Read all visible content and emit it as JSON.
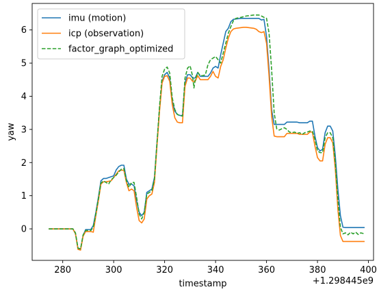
{
  "chart_data": {
    "type": "line",
    "xlabel": "timestamp",
    "ylabel": "yaw",
    "x_offset_label": "+1.298445e9",
    "xlim": [
      268,
      402
    ],
    "ylim": [
      -0.95,
      6.8
    ],
    "xticks": [
      280,
      300,
      320,
      340,
      360,
      380,
      400
    ],
    "yticks": [
      0,
      1,
      2,
      3,
      4,
      5,
      6
    ],
    "grid": false,
    "legend_position": "top-left",
    "series": [
      {
        "name": "imu (motion)",
        "color": "#1f77b4",
        "style": "solid",
        "x": [
          274.5,
          284,
          285,
          286,
          287,
          288,
          289,
          291,
          292,
          293,
          294,
          295,
          296,
          297,
          300,
          301,
          302,
          303,
          304,
          305,
          306,
          307,
          308,
          309,
          310,
          311,
          312,
          313,
          314,
          315,
          316,
          317,
          318,
          319,
          320,
          321,
          322,
          323,
          324,
          325,
          326,
          327,
          328,
          329,
          330,
          331,
          332,
          333,
          334,
          337,
          338,
          339,
          340,
          341,
          342,
          343,
          344,
          345,
          346,
          347,
          348,
          350,
          351,
          352,
          353,
          355,
          356,
          357,
          358,
          359,
          360,
          361,
          362,
          363,
          364,
          367,
          368,
          372,
          373,
          376,
          377,
          378,
          379,
          380,
          381,
          382,
          383,
          384,
          385,
          386,
          387,
          388,
          389,
          390,
          391,
          398.5
        ],
        "y": [
          0.0,
          0.0,
          -0.15,
          -0.6,
          -0.62,
          -0.2,
          -0.02,
          -0.02,
          0.1,
          0.5,
          0.95,
          1.45,
          1.52,
          1.52,
          1.6,
          1.78,
          1.88,
          1.92,
          1.92,
          1.5,
          1.35,
          1.35,
          1.3,
          0.85,
          0.5,
          0.4,
          0.5,
          1.1,
          1.15,
          1.2,
          1.55,
          2.6,
          3.6,
          4.45,
          4.65,
          4.72,
          4.55,
          3.85,
          3.55,
          3.45,
          3.42,
          3.42,
          4.4,
          4.65,
          4.65,
          4.55,
          4.55,
          4.72,
          4.6,
          4.6,
          4.7,
          4.85,
          4.9,
          4.85,
          5.25,
          5.6,
          5.95,
          6.05,
          6.25,
          6.32,
          6.33,
          6.35,
          6.35,
          6.35,
          6.35,
          6.35,
          6.35,
          6.35,
          6.3,
          6.32,
          5.8,
          4.8,
          3.6,
          3.15,
          3.15,
          3.15,
          3.22,
          3.22,
          3.2,
          3.2,
          3.25,
          3.25,
          2.8,
          2.45,
          2.35,
          2.4,
          2.9,
          3.1,
          3.1,
          2.95,
          2.2,
          1.2,
          0.4,
          0.05,
          0.04,
          0.04
        ]
      },
      {
        "name": "icp (observation)",
        "color": "#ff7f0e",
        "style": "solid",
        "x": [
          274.5,
          284,
          285,
          286,
          287,
          288,
          289,
          291,
          292,
          293,
          294,
          295,
          296,
          297,
          299,
          300,
          301,
          302,
          303,
          304,
          305,
          306,
          307,
          308,
          309,
          310,
          311,
          312,
          313,
          314,
          315,
          316,
          317,
          318,
          319,
          320,
          321,
          322,
          323,
          324,
          325,
          326,
          327,
          328,
          329,
          330,
          331,
          332,
          333,
          334,
          337,
          338,
          339,
          340,
          341,
          342,
          343,
          344,
          345,
          346,
          347,
          348,
          350,
          351,
          352,
          355,
          356,
          357,
          358,
          359,
          360,
          361,
          362,
          363,
          364,
          367,
          368,
          372,
          373,
          376,
          377,
          378,
          379,
          380,
          381,
          382,
          383,
          384,
          385,
          386,
          387,
          388,
          389,
          390,
          391,
          398.5
        ],
        "y": [
          0.0,
          0.0,
          -0.15,
          -0.62,
          -0.64,
          -0.22,
          -0.08,
          -0.08,
          -0.1,
          0.4,
          0.85,
          1.35,
          1.42,
          1.42,
          1.45,
          1.55,
          1.65,
          1.75,
          1.77,
          1.77,
          1.4,
          1.15,
          1.2,
          1.15,
          0.65,
          0.25,
          0.18,
          0.3,
          0.9,
          1.0,
          1.05,
          1.4,
          2.5,
          3.55,
          4.4,
          4.6,
          4.62,
          4.45,
          3.75,
          3.35,
          3.22,
          3.2,
          3.2,
          4.3,
          4.55,
          4.55,
          4.45,
          4.45,
          4.62,
          4.5,
          4.5,
          4.6,
          4.75,
          4.6,
          4.55,
          4.9,
          5.1,
          5.45,
          5.75,
          5.95,
          6.03,
          6.05,
          6.07,
          6.08,
          6.08,
          6.05,
          6.02,
          5.95,
          5.92,
          5.95,
          5.6,
          4.6,
          3.4,
          2.8,
          2.78,
          2.78,
          2.88,
          2.88,
          2.85,
          2.85,
          2.92,
          2.92,
          2.5,
          2.15,
          2.05,
          2.05,
          2.55,
          2.75,
          2.75,
          2.6,
          1.8,
          0.6,
          -0.2,
          -0.38,
          -0.38,
          -0.38
        ]
      },
      {
        "name": "factor_graph_optimized",
        "color": "#2ca02c",
        "style": "dashed",
        "x": [
          274.5,
          284,
          285,
          286,
          287,
          288,
          289,
          291,
          292,
          293,
          294,
          295,
          296,
          297,
          298,
          299,
          300,
          301,
          302,
          303,
          304,
          305,
          306,
          307,
          308,
          309,
          310,
          311,
          312,
          313,
          314,
          315,
          316,
          317,
          318,
          319,
          320,
          321,
          322,
          323,
          324,
          325,
          326,
          327,
          328,
          329,
          330,
          331,
          331.5,
          332,
          333,
          334,
          335,
          336,
          337,
          338,
          339,
          340,
          341,
          342,
          343,
          344,
          345,
          346,
          347,
          348,
          350,
          351,
          352,
          353,
          355,
          356,
          357,
          358,
          359,
          360,
          361,
          362,
          363,
          364,
          365,
          366,
          367,
          368,
          369,
          370,
          371,
          372,
          373,
          374,
          375,
          376,
          377,
          378,
          379,
          380,
          381,
          382,
          383,
          384,
          385,
          386,
          387,
          388,
          389,
          390,
          391,
          392,
          393,
          394,
          395,
          396,
          397,
          398.5
        ],
        "y": [
          0.0,
          0.0,
          -0.12,
          -0.58,
          -0.6,
          -0.18,
          -0.05,
          -0.05,
          0.05,
          0.45,
          0.9,
          1.38,
          1.45,
          1.4,
          1.35,
          1.48,
          1.55,
          1.62,
          1.72,
          1.8,
          1.82,
          1.45,
          1.25,
          1.4,
          1.4,
          0.95,
          0.45,
          0.3,
          0.5,
          1.05,
          1.1,
          1.15,
          1.5,
          2.6,
          3.7,
          4.6,
          4.82,
          4.88,
          4.7,
          3.95,
          3.6,
          3.45,
          3.42,
          3.4,
          4.55,
          4.85,
          4.92,
          4.6,
          4.25,
          4.5,
          4.72,
          4.62,
          4.62,
          4.65,
          4.95,
          5.1,
          5.15,
          5.2,
          5.1,
          5.0,
          5.3,
          5.6,
          5.9,
          6.1,
          6.28,
          6.35,
          6.38,
          6.4,
          6.42,
          6.43,
          6.45,
          6.45,
          6.45,
          6.42,
          6.38,
          6.35,
          5.9,
          4.8,
          3.5,
          3.02,
          2.98,
          3.02,
          3.05,
          3.0,
          2.92,
          2.9,
          2.92,
          2.88,
          2.9,
          2.85,
          2.9,
          2.92,
          2.95,
          2.95,
          2.7,
          2.35,
          2.3,
          2.3,
          2.75,
          2.9,
          2.9,
          2.75,
          2.0,
          0.9,
          0.05,
          -0.15,
          -0.12,
          -0.18,
          -0.1,
          -0.15,
          -0.1,
          -0.17,
          -0.12,
          -0.15
        ]
      }
    ]
  }
}
